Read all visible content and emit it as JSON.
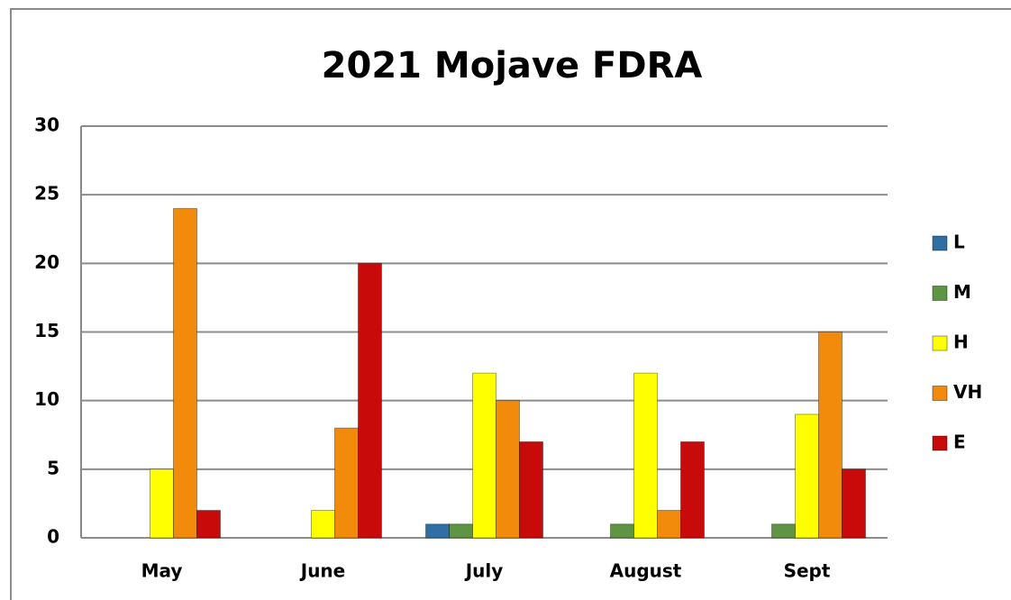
{
  "chart_data": {
    "type": "bar",
    "title": "2021 Mojave FDRA",
    "categories": [
      "May",
      "June",
      "July",
      "August",
      "Sept"
    ],
    "series": [
      {
        "name": "L",
        "color": "#2f6fa3",
        "values": [
          0,
          0,
          1,
          0,
          0
        ]
      },
      {
        "name": "M",
        "color": "#5f9444",
        "values": [
          0,
          0,
          1,
          1,
          1
        ]
      },
      {
        "name": "H",
        "color": "#ffff00",
        "values": [
          5,
          2,
          12,
          12,
          9
        ]
      },
      {
        "name": "VH",
        "color": "#f28a0c",
        "values": [
          24,
          8,
          10,
          2,
          15
        ]
      },
      {
        "name": "E",
        "color": "#c80a0a",
        "values": [
          2,
          20,
          7,
          7,
          5
        ]
      }
    ],
    "ylim": [
      0,
      30
    ],
    "yticks": [
      0,
      5,
      10,
      15,
      20,
      25,
      30
    ],
    "grid": true,
    "legend": "right"
  }
}
